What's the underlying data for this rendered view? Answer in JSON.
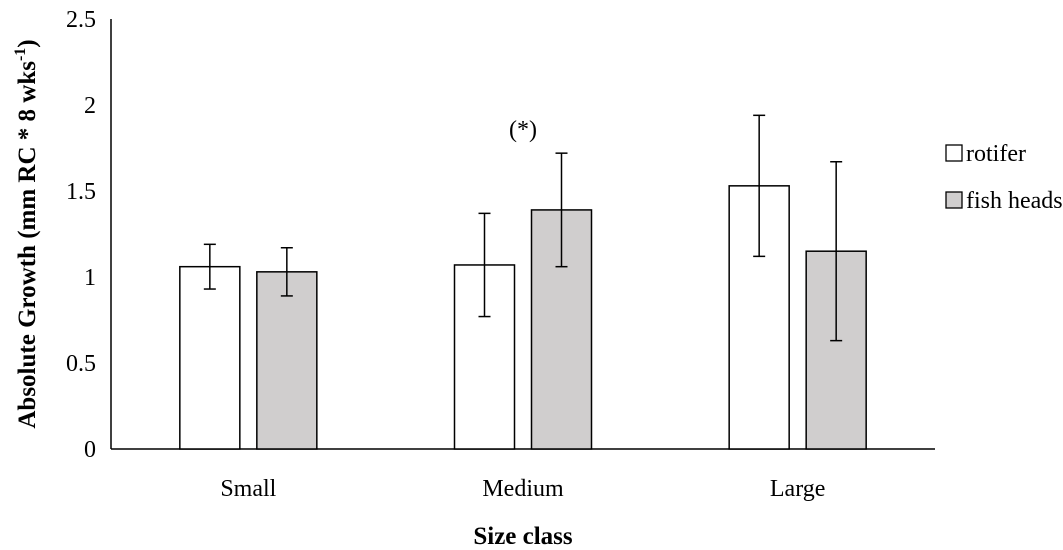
{
  "chart_data": {
    "type": "bar",
    "xlabel": "Size class",
    "ylabel": "Absolute Growth (mm RC * 8 wks",
    "ylabel_sup": "-1",
    "ylabel_end": ")",
    "categories": [
      "Small",
      "Medium",
      "Large"
    ],
    "ylim": [
      0,
      2.5
    ],
    "y_ticks": [
      "0",
      "0.5",
      "1",
      "1.5",
      "2",
      "2.5"
    ],
    "grid": false,
    "legend_position": "right",
    "series": [
      {
        "name": "rotifer",
        "values": [
          1.06,
          1.07,
          1.53
        ],
        "error": [
          0.13,
          0.3,
          0.41
        ],
        "fill": "#ffffff"
      },
      {
        "name": "fish heads",
        "values": [
          1.03,
          1.39,
          1.15
        ],
        "error": [
          0.14,
          0.33,
          0.52
        ],
        "fill": "#d0cece"
      }
    ],
    "annotations": [
      {
        "text": "(*)",
        "category": "Medium",
        "y": 1.86
      }
    ]
  }
}
